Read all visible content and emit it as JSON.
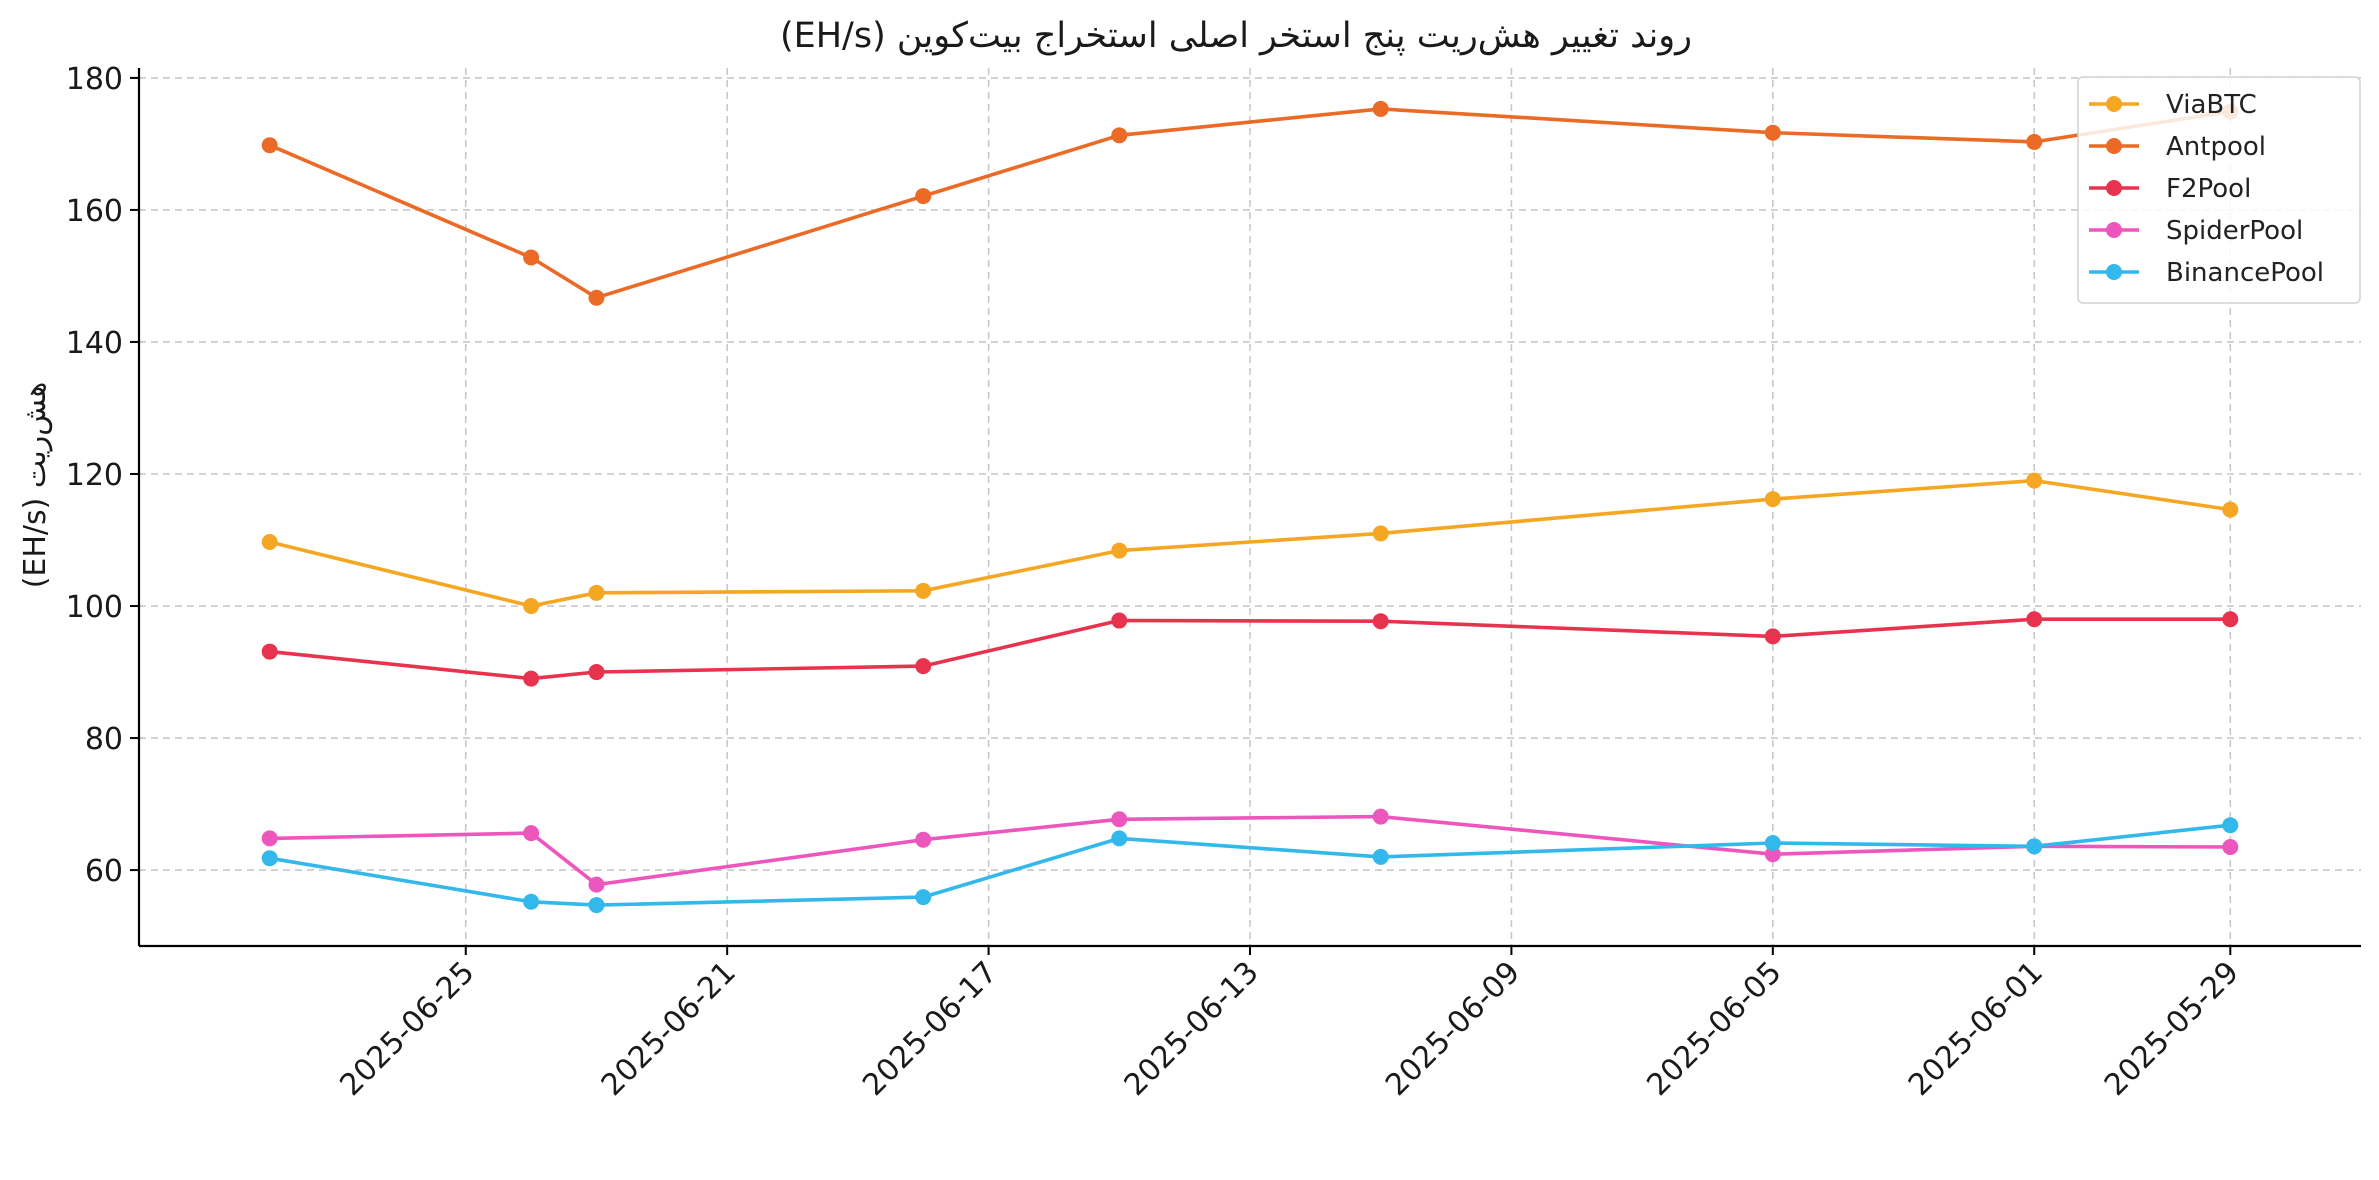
{
  "chart_data": {
    "type": "line",
    "title": "روند تغییر هش‌ریت پنج استخر اصلی استخراج بیت‌کوین  (EH/s)",
    "xlabel": "",
    "ylabel": "هش‌ریت  (EH/s)",
    "x_axis": "date",
    "x_reversed": true,
    "xlim": [
      "2025-06-30",
      "2025-05-27"
    ],
    "ylim": [
      48.5,
      181.5
    ],
    "y_ticks": [
      60,
      80,
      100,
      120,
      140,
      160,
      180
    ],
    "x_ticks": [
      "2025-06-25",
      "2025-06-21",
      "2025-06-17",
      "2025-06-13",
      "2025-06-09",
      "2025-06-05",
      "2025-06-01",
      "2025-05-29"
    ],
    "grid": true,
    "legend_position": "top-right",
    "x": [
      "2025-06-28",
      "2025-06-24",
      "2025-06-23",
      "2025-06-18",
      "2025-06-15",
      "2025-06-11",
      "2025-06-05",
      "2025-06-01",
      "2025-05-29"
    ],
    "series": [
      {
        "name": "ViaBTC",
        "color": "#f5a623",
        "values": [
          109.7,
          100.0,
          102.0,
          102.3,
          108.4,
          111.0,
          116.2,
          119.0,
          114.6
        ]
      },
      {
        "name": "Antpool",
        "color": "#ea6a26",
        "values": [
          169.8,
          152.8,
          146.7,
          162.1,
          171.3,
          175.3,
          171.7,
          170.3,
          174.9
        ]
      },
      {
        "name": "F2Pool",
        "color": "#e8334f",
        "values": [
          93.1,
          89.0,
          90.0,
          90.9,
          97.8,
          97.7,
          95.4,
          98.0,
          98.0
        ]
      },
      {
        "name": "SpiderPool",
        "color": "#ec56bd",
        "values": [
          64.8,
          65.6,
          57.8,
          64.6,
          67.7,
          68.1,
          62.4,
          63.6,
          63.5
        ]
      },
      {
        "name": "BinancePool",
        "color": "#33b8ec",
        "values": [
          61.8,
          55.2,
          54.7,
          55.9,
          64.8,
          62.0,
          64.1,
          63.6,
          66.8
        ]
      }
    ]
  }
}
